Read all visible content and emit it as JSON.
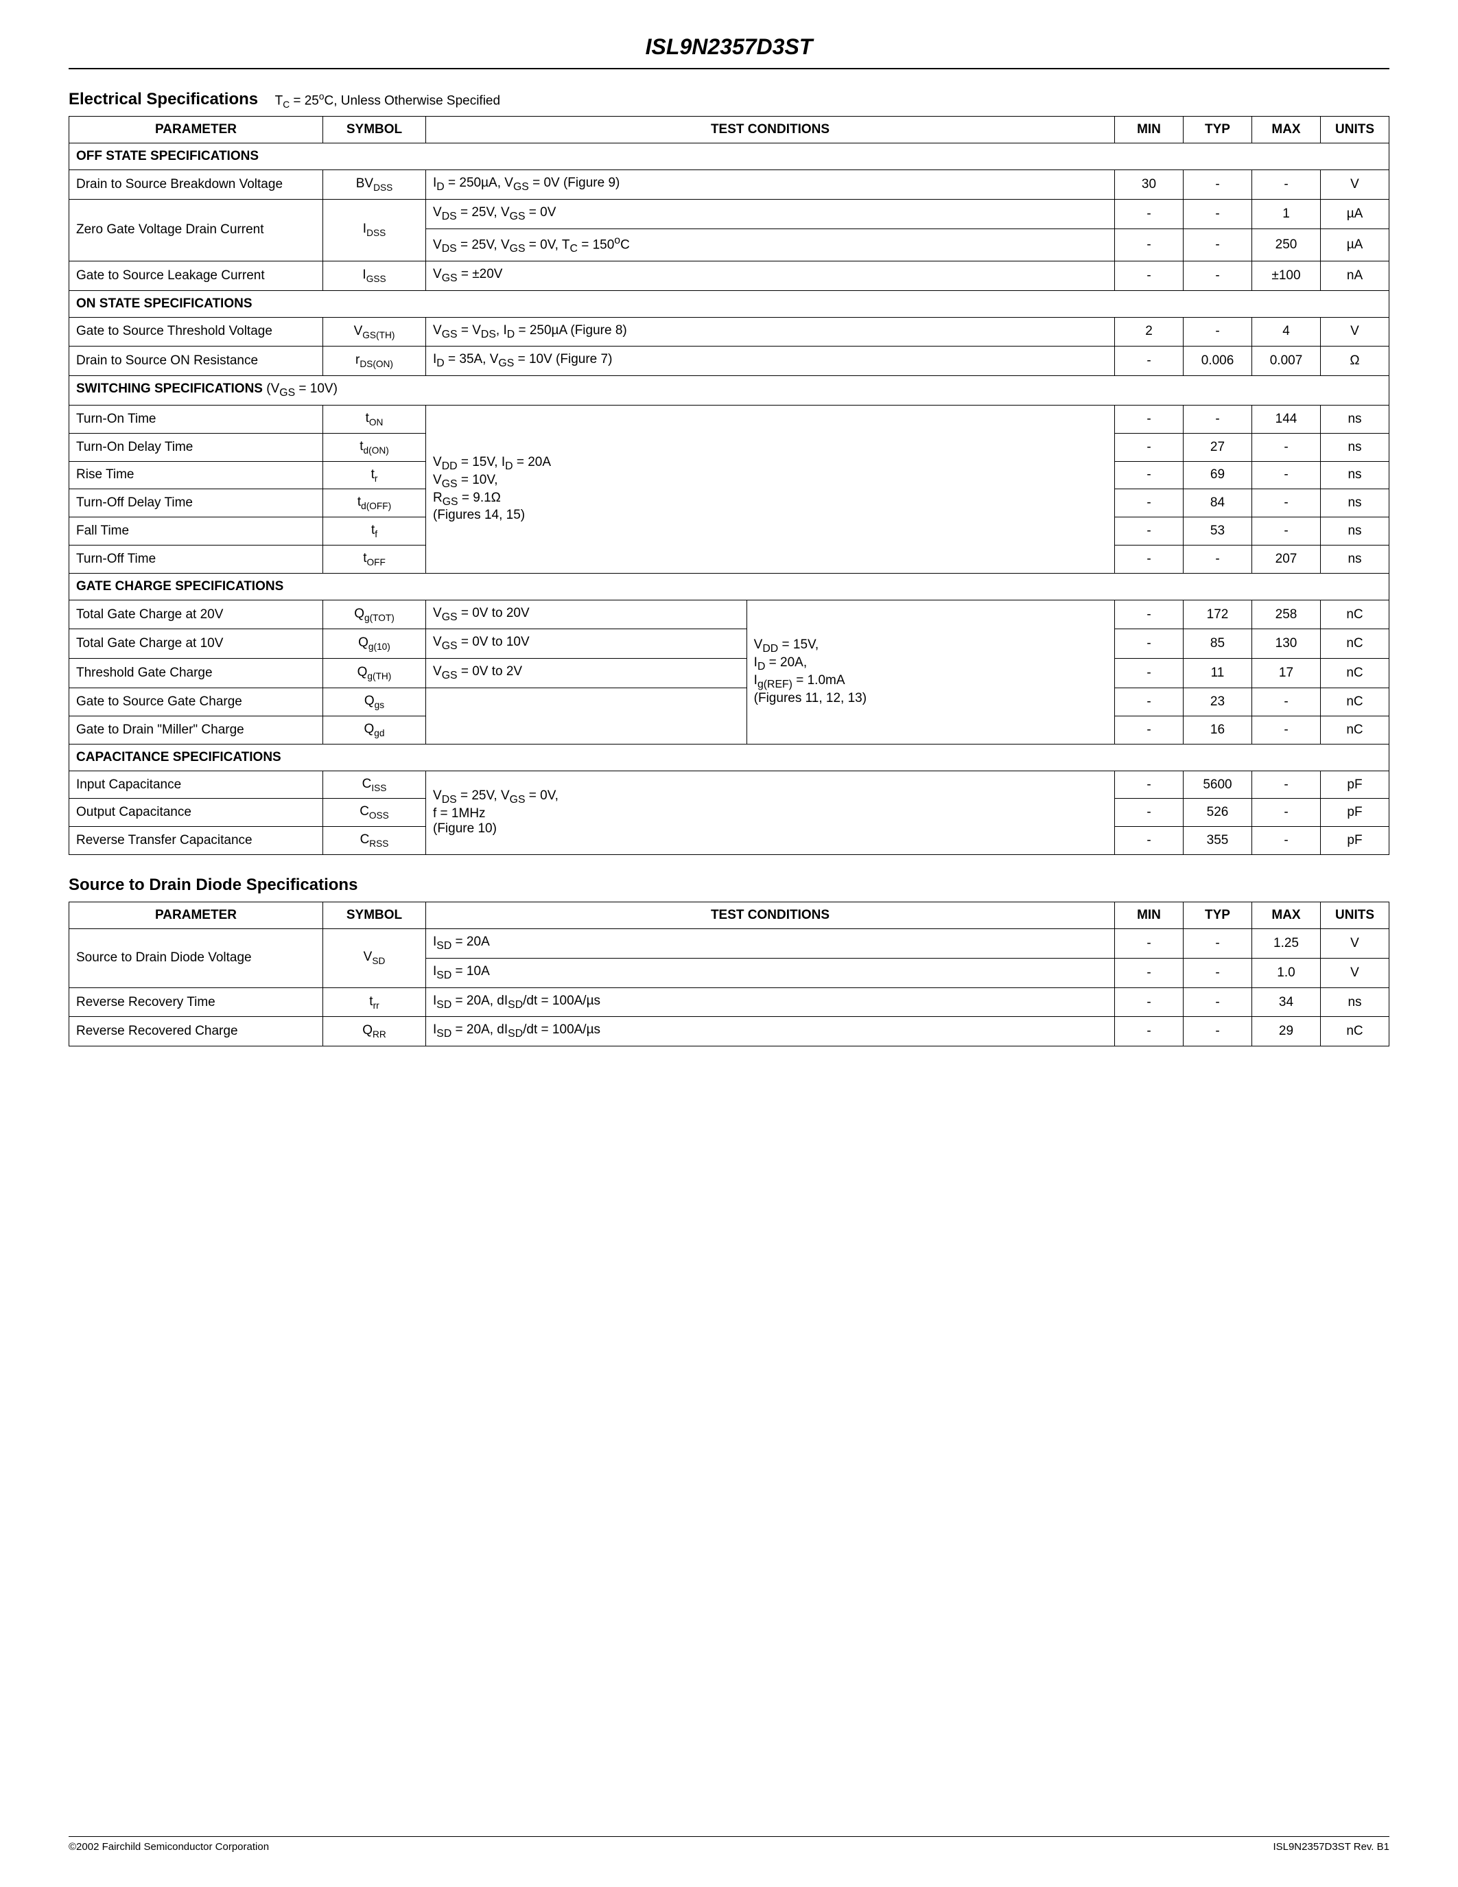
{
  "page_title": "ISL9N2357D3ST",
  "section1": {
    "heading": "Electrical Specifications",
    "condition_prefix": "T",
    "condition_sub": "C",
    "condition_rest": " = 25",
    "condition_sup": "o",
    "condition_end": "C, Unless Otherwise Specified",
    "headers": {
      "parameter": "PARAMETER",
      "symbol": "SYMBOL",
      "conditions": "TEST CONDITIONS",
      "min": "MIN",
      "typ": "TYP",
      "max": "MAX",
      "units": "UNITS"
    },
    "groups": [
      {
        "title": "OFF STATE SPECIFICATIONS",
        "rows": [
          {
            "param": "Drain to Source Breakdown Voltage",
            "sym": "BV",
            "sym_sub": "DSS",
            "cond": "I<sub>D</sub> = 250µA, V<sub>GS</sub> = 0V (Figure 9)",
            "min": "30",
            "typ": "-",
            "max": "-",
            "units": "V"
          },
          {
            "param": "Zero Gate Voltage Drain Current",
            "sym": "I",
            "sym_sub": "DSS",
            "cond": "V<sub>DS</sub> = 25V, V<sub>GS</sub> = 0V",
            "min": "-",
            "typ": "-",
            "max": "1",
            "units": "µA",
            "rowspan_param": 2,
            "rowspan_sym": 2
          },
          {
            "cond": "V<sub>DS</sub> = 25V, V<sub>GS</sub> = 0V, T<sub>C</sub> = 150<sup>o</sup>C",
            "min": "-",
            "typ": "-",
            "max": "250",
            "units": "µA",
            "skip_param": true
          },
          {
            "param": "Gate to Source Leakage Current",
            "sym": "I",
            "sym_sub": "GSS",
            "cond": "V<sub>GS</sub> = ±20V",
            "min": "-",
            "typ": "-",
            "max": "±100",
            "units": "nA"
          }
        ]
      },
      {
        "title": "ON STATE SPECIFICATIONS",
        "rows": [
          {
            "param": "Gate to Source Threshold Voltage",
            "sym": "V",
            "sym_sub": "GS(TH)",
            "cond": "V<sub>GS</sub> = V<sub>DS</sub>, I<sub>D</sub> = 250µA (Figure 8)",
            "min": "2",
            "typ": "-",
            "max": "4",
            "units": "V"
          },
          {
            "param": "Drain to Source ON Resistance",
            "sym": "r",
            "sym_sub": "DS(ON)",
            "cond": "I<sub>D</sub> = 35A, V<sub>GS</sub> = 10V (Figure 7)",
            "min": "-",
            "typ": "0.006",
            "max": "0.007",
            "units": "Ω"
          }
        ]
      },
      {
        "title": "SWITCHING SPECIFICATIONS",
        "title_suffix": "   (V<sub>GS</sub> = 10V)",
        "shared_cond": "V<sub>DD</sub> = 15V, I<sub>D</sub> = 20A<br>V<sub>GS</sub> = 10V,<br>R<sub>GS</sub> = 9.1Ω<br>(Figures 14, 15)",
        "rows": [
          {
            "param": "Turn-On Time",
            "sym": "t",
            "sym_sub": "ON",
            "min": "-",
            "typ": "-",
            "max": "144",
            "units": "ns",
            "cond_rowspan": 6
          },
          {
            "param": "Turn-On Delay Time",
            "sym": "t",
            "sym_sub": "d(ON)",
            "min": "-",
            "typ": "27",
            "max": "-",
            "units": "ns"
          },
          {
            "param": "Rise Time",
            "sym": "t",
            "sym_sub": "r",
            "min": "-",
            "typ": "69",
            "max": "-",
            "units": "ns"
          },
          {
            "param": "Turn-Off Delay Time",
            "sym": "t",
            "sym_sub": "d(OFF)",
            "min": "-",
            "typ": "84",
            "max": "-",
            "units": "ns"
          },
          {
            "param": "Fall Time",
            "sym": "t",
            "sym_sub": "f",
            "min": "-",
            "typ": "53",
            "max": "-",
            "units": "ns"
          },
          {
            "param": "Turn-Off Time",
            "sym": "t",
            "sym_sub": "OFF",
            "min": "-",
            "typ": "-",
            "max": "207",
            "units": "ns"
          }
        ]
      },
      {
        "title": "GATE CHARGE SPECIFICATIONS",
        "shared_cond2": "V<sub>DD</sub> = 15V,<br>I<sub>D</sub> = 20A,<br>I<sub>g(REF)</sub> = 1.0mA<br>(Figures 11, 12, 13)",
        "rows": [
          {
            "param": "Total Gate Charge at 20V",
            "sym": "Q",
            "sym_sub": "g(TOT)",
            "cond1": "V<sub>GS</sub> = 0V to 20V",
            "cond2_rowspan": 5,
            "min": "-",
            "typ": "172",
            "max": "258",
            "units": "nC"
          },
          {
            "param": "Total Gate Charge at 10V",
            "sym": "Q",
            "sym_sub": "g(10)",
            "cond1": "V<sub>GS</sub> = 0V to 10V",
            "min": "-",
            "typ": "85",
            "max": "130",
            "units": "nC"
          },
          {
            "param": "Threshold Gate Charge",
            "sym": "Q",
            "sym_sub": "g(TH)",
            "cond1": "V<sub>GS</sub> = 0V to 2V",
            "min": "-",
            "typ": "11",
            "max": "17",
            "units": "nC"
          },
          {
            "param": "Gate to Source Gate Charge",
            "sym": "Q",
            "sym_sub": "gs",
            "cond1_empty": true,
            "cond1_rowspan": 2,
            "min": "-",
            "typ": "23",
            "max": "-",
            "units": "nC"
          },
          {
            "param": "Gate to Drain \"Miller\" Charge",
            "sym": "Q",
            "sym_sub": "gd",
            "skip_cond1": true,
            "min": "-",
            "typ": "16",
            "max": "-",
            "units": "nC"
          }
        ]
      },
      {
        "title": "CAPACITANCE SPECIFICATIONS",
        "shared_cond": "V<sub>DS</sub> = 25V, V<sub>GS</sub> = 0V,<br>f = 1MHz<br>(Figure 10)",
        "rows": [
          {
            "param": "Input Capacitance",
            "sym": "C",
            "sym_sub": "ISS",
            "cond_rowspan": 3,
            "min": "-",
            "typ": "5600",
            "max": "-",
            "units": "pF"
          },
          {
            "param": "Output Capacitance",
            "sym": "C",
            "sym_sub": "OSS",
            "min": "-",
            "typ": "526",
            "max": "-",
            "units": "pF"
          },
          {
            "param": "Reverse Transfer Capacitance",
            "sym": "C",
            "sym_sub": "RSS",
            "min": "-",
            "typ": "355",
            "max": "-",
            "units": "pF"
          }
        ]
      }
    ]
  },
  "section2": {
    "heading": "Source to Drain Diode Specifications",
    "headers": {
      "parameter": "PARAMETER",
      "symbol": "SYMBOL",
      "conditions": "TEST CONDITIONS",
      "min": "MIN",
      "typ": "TYP",
      "max": "MAX",
      "units": "UNITS"
    },
    "rows": [
      {
        "param": "Source to Drain Diode Voltage",
        "sym": "V",
        "sym_sub": "SD",
        "cond": "I<sub>SD</sub> = 20A",
        "min": "-",
        "typ": "-",
        "max": "1.25",
        "units": "V",
        "rowspan_param": 2,
        "rowspan_sym": 2
      },
      {
        "cond": "I<sub>SD</sub> = 10A",
        "min": "-",
        "typ": "-",
        "max": "1.0",
        "units": "V",
        "skip_param": true
      },
      {
        "param": "Reverse Recovery Time",
        "sym": "t",
        "sym_sub": "rr",
        "cond": "I<sub>SD</sub> = 20A, dI<sub>SD</sub>/dt = 100A/µs",
        "min": "-",
        "typ": "-",
        "max": "34",
        "units": "ns"
      },
      {
        "param": "Reverse Recovered Charge",
        "sym": "Q",
        "sym_sub": "RR",
        "cond": "I<sub>SD</sub> = 20A, dI<sub>SD</sub>/dt = 100A/µs",
        "min": "-",
        "typ": "-",
        "max": "29",
        "units": "nC"
      }
    ]
  },
  "footer": {
    "left": "©2002 Fairchild Semiconductor Corporation",
    "right": "ISL9N2357D3ST Rev. B1"
  }
}
